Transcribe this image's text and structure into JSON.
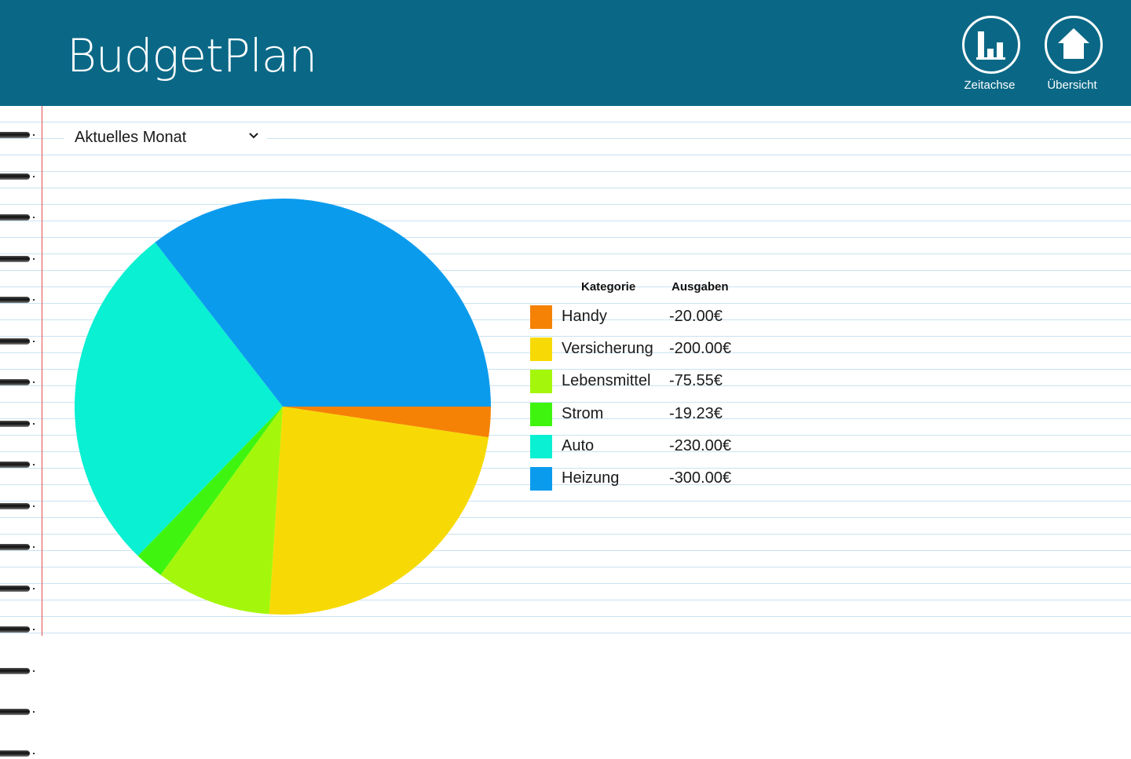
{
  "app": {
    "title": "BudgetPlan"
  },
  "appbar": {
    "timeline_label": "Zeitachse",
    "overview_label": "Übersicht"
  },
  "period_select": {
    "selected": "Aktuelles Monat"
  },
  "legend": {
    "header_category": "Kategorie",
    "header_amount": "Ausgaben",
    "rows": [
      {
        "category": "Handy",
        "amount": "-20.00€",
        "color": "#f58205"
      },
      {
        "category": "Versicherung",
        "amount": "-200.00€",
        "color": "#f7da05"
      },
      {
        "category": "Lebensmittel",
        "amount": "-75.55€",
        "color": "#a4f70a"
      },
      {
        "category": "Strom",
        "amount": "-19.23€",
        "color": "#3ff50f"
      },
      {
        "category": "Auto",
        "amount": "-230.00€",
        "color": "#0af0d2"
      },
      {
        "category": "Heizung",
        "amount": "-300.00€",
        "color": "#0b9bed"
      }
    ]
  },
  "chart_data": {
    "type": "pie",
    "categories": [
      "Handy",
      "Versicherung",
      "Lebensmittel",
      "Strom",
      "Auto",
      "Heizung"
    ],
    "values": [
      20.0,
      200.0,
      75.55,
      19.23,
      230.0,
      300.0
    ],
    "colors": [
      "#f58205",
      "#f7da05",
      "#a4f70a",
      "#3ff50f",
      "#0af0d2",
      "#0b9bed"
    ],
    "start": "3 o'clock",
    "direction": "clockwise"
  },
  "theme": {
    "header_bg": "#0a6886",
    "paper_line": "#c9e3f1",
    "margin_line": "#e05050"
  }
}
